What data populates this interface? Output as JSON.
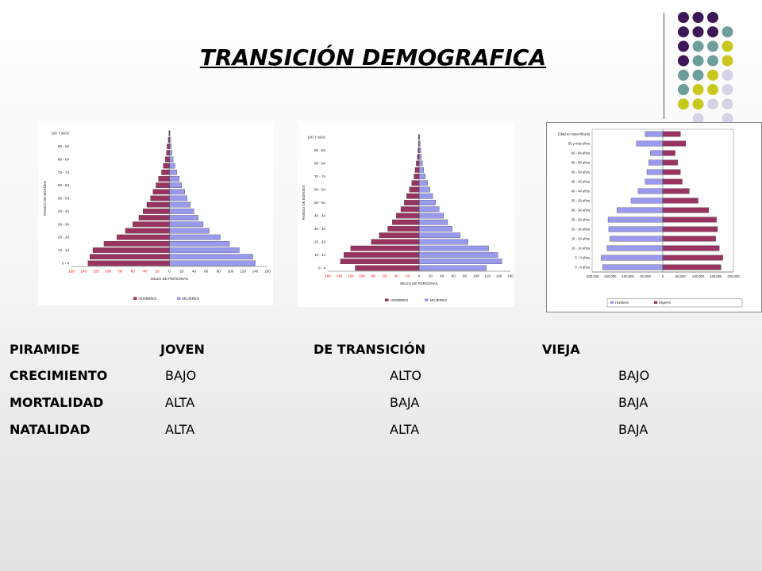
{
  "title": "TRANSICIÓN DEMOGRAFICA",
  "decoration": {
    "colors": {
      "purple": "#3d1657",
      "teal": "#6e9e9a",
      "yellow": "#c8c81e",
      "lavender": "#d4d4e6"
    },
    "dot_grid": [
      [
        "purple",
        "purple",
        "purple",
        null
      ],
      [
        "purple",
        "purple",
        "purple",
        "teal"
      ],
      [
        "purple",
        "teal",
        "teal",
        "yellow"
      ],
      [
        "purple",
        "teal",
        "teal",
        "yellow"
      ],
      [
        "teal",
        "teal",
        "yellow",
        "lavender"
      ],
      [
        "teal",
        "yellow",
        "yellow",
        "lavender"
      ],
      [
        "yellow",
        "yellow",
        "lavender",
        "lavender"
      ],
      [
        null,
        "lavender",
        null,
        "lavender"
      ]
    ]
  },
  "colors": {
    "hombres": "#9999ee",
    "mujeres": "#99335f",
    "negative_tick": "#ff0000"
  },
  "chart_data": [
    {
      "type": "bar",
      "orientation": "population-pyramid",
      "categories": [
        "0 - 4",
        "5 - 9",
        "10 - 14",
        "15 - 19",
        "20 - 24",
        "25 - 29",
        "30 - 34",
        "35 - 39",
        "40 - 44",
        "45 - 49",
        "50 - 54",
        "55 - 59",
        "60 - 64",
        "65 - 69",
        "70 - 74",
        "75 - 79",
        "80 - 84",
        "85 - 89",
        "90 - 94",
        "95 - 99",
        "100 Y MAS"
      ],
      "category_labels": [
        "0 - 4",
        "",
        "10 - 14",
        "",
        "20 - 24",
        "",
        "30 - 34",
        "",
        "40 - 44",
        "",
        "50 - 54",
        "",
        "60 - 64",
        "",
        "70 - 74",
        "",
        "80 - 84",
        "",
        "90 - 94",
        "",
        "100 Y MAS"
      ],
      "series": [
        {
          "name": "HOMBRES",
          "values": [
            133,
            130,
            125,
            107,
            86,
            72,
            60,
            50,
            43,
            37,
            31,
            27,
            22,
            18,
            13,
            10,
            7,
            5,
            4,
            2,
            1
          ]
        },
        {
          "name": "MUJERES",
          "values": [
            140,
            136,
            114,
            98,
            83,
            65,
            55,
            47,
            40,
            34,
            29,
            25,
            20,
            16,
            12,
            9,
            6,
            4,
            3,
            2,
            1
          ]
        }
      ],
      "xlabel": "MILES DE PERSONAS",
      "ylabel": "RANGO DE EDADES",
      "xticks": [
        "160",
        "140",
        "120",
        "100",
        "80",
        "60",
        "40",
        "20",
        "0",
        "20",
        "40",
        "60",
        "80",
        "100",
        "120",
        "140",
        "160"
      ],
      "xlim": [
        -160,
        160
      ],
      "legend": [
        "HOMBRES",
        "MUJERES"
      ]
    },
    {
      "type": "bar",
      "orientation": "population-pyramid",
      "categories": [
        "0 - 4",
        "5 - 9",
        "10 - 14",
        "15 - 19",
        "20 - 24",
        "25 - 29",
        "30 - 34",
        "35 - 39",
        "40 - 44",
        "45 - 49",
        "50 - 54",
        "55 - 59",
        "60 - 64",
        "65 - 69",
        "70 - 74",
        "75 - 79",
        "80 - 84",
        "85 - 89",
        "90 - 94",
        "95 - 99",
        "100 Y MAS"
      ],
      "category_labels": [
        "0 - 4",
        "",
        "10 - 14",
        "",
        "20 - 24",
        "",
        "30 - 34",
        "",
        "40 - 44",
        "",
        "50 - 54",
        "",
        "60 - 64",
        "",
        "70 - 74",
        "",
        "80 - 84",
        "",
        "90 - 94",
        "",
        "100 Y MAS"
      ],
      "series": [
        {
          "name": "HOMBRES",
          "values": [
            112,
            138,
            132,
            120,
            84,
            70,
            55,
            47,
            40,
            32,
            26,
            22,
            17,
            13,
            9,
            7,
            5,
            3,
            2,
            1,
            1
          ]
        },
        {
          "name": "MUJERES",
          "values": [
            118,
            145,
            138,
            122,
            86,
            72,
            58,
            50,
            43,
            35,
            29,
            24,
            19,
            15,
            11,
            8,
            6,
            4,
            3,
            2,
            1
          ]
        }
      ],
      "xlabel": "MILES DE PERSONAS",
      "ylabel": "RANGO DE EDADES",
      "xticks": [
        "160",
        "140",
        "120",
        "100",
        "80",
        "60",
        "40",
        "20",
        "0",
        "20",
        "40",
        "60",
        "80",
        "100",
        "120",
        "140",
        "160"
      ],
      "xlim": [
        -160,
        160
      ],
      "legend": [
        "HOMBRES",
        "MUJERES"
      ]
    },
    {
      "type": "bar",
      "orientation": "population-pyramid",
      "categories": [
        "0 - 4 años",
        "5 - 9 años",
        "10 - 14 años",
        "15 - 19 años",
        "20 - 24 años",
        "25 - 29 años",
        "30 - 34 años",
        "35 - 39 años",
        "40 - 44 años",
        "45 - 49 años",
        "50 - 54 años",
        "55 - 59 años",
        "60 - 64 años",
        "65 y más años",
        "Edad no especificada"
      ],
      "series": [
        {
          "name": "Hombres",
          "values": [
            170000,
            175000,
            158000,
            150000,
            153000,
            155000,
            130000,
            90000,
            70000,
            50000,
            45000,
            40000,
            35000,
            75000,
            50000
          ]
        },
        {
          "name": "Mujeres",
          "values": [
            165000,
            170000,
            160000,
            150000,
            155000,
            152000,
            130000,
            100000,
            75000,
            55000,
            50000,
            42000,
            35000,
            65000,
            50000
          ]
        }
      ],
      "xticks": [
        "-200,000",
        "-150,000",
        "-100,000",
        "-50,000",
        "0",
        "50,000",
        "100,000",
        "150,000",
        "200,000"
      ],
      "xlim": [
        -200000,
        200000
      ],
      "legend": [
        "Hombres",
        "Mujeres"
      ]
    }
  ],
  "table": {
    "header": [
      "PIRAMIDE",
      "JOVEN",
      "DE TRANSICIÓN",
      "VIEJA"
    ],
    "rows": [
      {
        "label": "CRECIMIENTO",
        "values": [
          "BAJO",
          "ALTO",
          "BAJO"
        ]
      },
      {
        "label": "MORTALIDAD",
        "values": [
          "ALTA",
          "BAJA",
          "BAJA"
        ]
      },
      {
        "label": "NATALIDAD",
        "values": [
          "ALTA",
          "ALTA",
          "BAJA"
        ]
      }
    ]
  }
}
